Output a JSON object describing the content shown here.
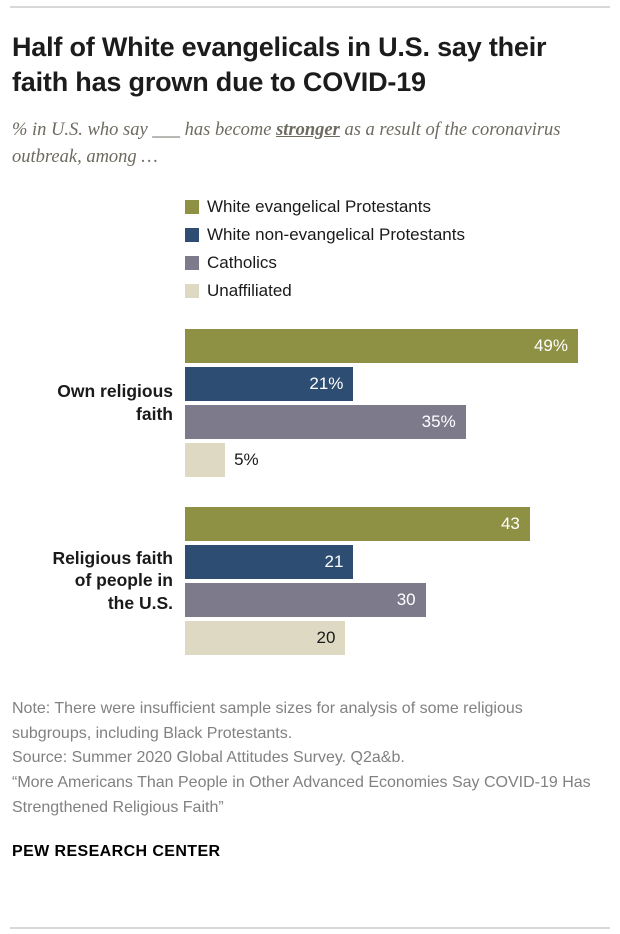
{
  "title": "Half of White evangelicals in U.S. say their faith has grown due to COVID-19",
  "subtitle": {
    "prefix": "% in U.S. who say ___ has become ",
    "emph": "stronger",
    "suffix": " as a result of the coronavirus outbreak, among …"
  },
  "chart_data": {
    "type": "bar",
    "orientation": "horizontal",
    "xmax": 49,
    "grid": false,
    "legend_position": "top",
    "categories": [
      "Own religious faith",
      "Religious faith of people in the U.S."
    ],
    "category_lines": [
      [
        "Own religious",
        "faith"
      ],
      [
        "Religious faith",
        "of people in",
        "the U.S."
      ]
    ],
    "series": [
      {
        "name": "White evangelical Protestants",
        "color": "#8e9144",
        "text_color": "#ffffff",
        "values": [
          49,
          43
        ],
        "labels": [
          "49%",
          "43"
        ]
      },
      {
        "name": "White non-evangelical Protestants",
        "color": "#2d4d72",
        "text_color": "#ffffff",
        "values": [
          21,
          21
        ],
        "labels": [
          "21%",
          "21"
        ]
      },
      {
        "name": "Catholics",
        "color": "#7d7a8c",
        "text_color": "#ffffff",
        "values": [
          35,
          30
        ],
        "labels": [
          "35%",
          "30"
        ]
      },
      {
        "name": "Unaffiliated",
        "color": "#ded9c2",
        "text_color": "#1a1a1a",
        "values": [
          5,
          20
        ],
        "labels": [
          "5%",
          "20"
        ]
      }
    ],
    "label_outside_threshold": 10
  },
  "notes": {
    "note": "Note: There were insufficient sample sizes for analysis of some religious subgroups, including Black Protestants.",
    "source": "Source: Summer 2020 Global Attitudes Survey. Q2a&b.",
    "quote": "“More Americans Than People in Other Advanced Economies Say COVID-19 Has Strengthened Religious Faith”"
  },
  "footer": "PEW RESEARCH CENTER"
}
